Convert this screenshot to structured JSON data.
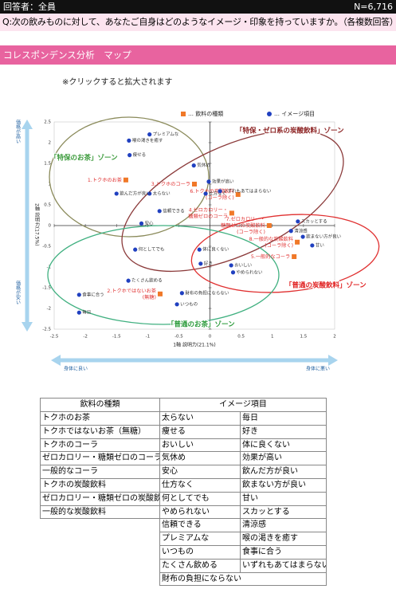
{
  "header": {
    "respondent": "回答者：全員",
    "n": "N=6,716",
    "question": "Q:次の飲みものに対して、あなたご自身はどのようなイメージ・印象を持っていますか。（各複数回答）"
  },
  "section": {
    "title": "コレスポンデンス分析　マップ",
    "note": "※クリックすると拡大されます"
  },
  "chart_data": {
    "type": "scatter",
    "xlabel": "1軸 説明力(21.1%)",
    "ylabel": "2軸 説明力(17.5%)",
    "xlim": [
      -2.5,
      2
    ],
    "ylim": [
      -2.5,
      2.5
    ],
    "xticks": [
      -2.5,
      -2,
      -1.5,
      -1,
      -0.5,
      0,
      0.5,
      1,
      1.5,
      2
    ],
    "yticks": [
      -2.5,
      -2,
      -1.5,
      -1,
      -0.5,
      0,
      0.5,
      1,
      1.5,
      2,
      2.5
    ],
    "grid": false,
    "legend": "top",
    "series": [
      {
        "name": "… 飲料の種類",
        "color": "#f07828",
        "marker": "square",
        "label_color": "#e03030",
        "x": [
          -1.35,
          -0.8,
          -0.25,
          0.35,
          1.35,
          0.45,
          0.95,
          1.4
        ],
        "values": [
          1.1,
          -1.65,
          1.0,
          0.3,
          -0.75,
          0.75,
          0.0,
          -0.4
        ],
        "labels": [
          [
            "1.トクホのお茶"
          ],
          [
            "2.トクホではないお茶",
            "(無糖)"
          ],
          [
            "3.トクホのコーラ"
          ],
          [
            "4.ゼロカロリー・",
            "糖類ゼロのコーラ"
          ],
          [
            "5.一般的なコーラ"
          ],
          [
            "6.トクホの炭酸飲料",
            "(コーラ除く)"
          ],
          [
            "7.ゼロカロリー・",
            "糖類ゼロの炭酸飲料",
            "(コーラ除く)"
          ],
          [
            "8.一般的な炭酸飲料",
            "(コーラ除く)"
          ]
        ]
      },
      {
        "name": "… イメージ項目",
        "color": "#2040c0",
        "marker": "circle",
        "label_color": "#333333",
        "x": [
          -0.97,
          -1.29,
          0.34,
          -0.26,
          -1.1,
          -0.07,
          -1.2,
          0.37,
          -0.81,
          -0.97,
          -0.53,
          -1.31,
          -0.45,
          -2.1,
          -0.15,
          -0.17,
          -0.02,
          -1.5,
          1.49,
          1.64,
          1.41,
          1.3,
          -1.3,
          -2.1,
          0.16
        ],
        "values": [
          0.77,
          1.7,
          -0.96,
          1.45,
          0.05,
          0.77,
          -0.58,
          -1.13,
          0.35,
          2.2,
          -1.9,
          -1.33,
          -1.63,
          -2.1,
          -0.92,
          -0.58,
          1.06,
          0.77,
          -0.27,
          -0.48,
          0.1,
          -0.13,
          2.05,
          -1.67,
          0.83
        ],
        "labels": [
          "太らない",
          "痩せる",
          "おいしい",
          "気休め",
          "安心",
          "仕方なく",
          "何としてでも",
          "やめられない",
          "信頼できる",
          "プレミアムな",
          "いつもの",
          "たくさん飲める",
          "財布の負担にならない",
          "毎日",
          "好き",
          "体に良くない",
          "効果が高い",
          "飲んだ方が良い",
          "飲まない方が良い",
          "甘い",
          "スカッとする",
          "清涼感",
          "喉の渇きを癒す",
          "食事に合う",
          "いずれもあてはまらない"
        ]
      }
    ],
    "zones": [
      {
        "text": "「特保のお茶」ゾーン",
        "color": "#3a9a3a",
        "line_color": "#8a8a5a"
      },
      {
        "text": "「特保・ゼロ系の炭酸飲料」ゾーン",
        "color": "#8b2020",
        "line_color": "#8b3a3a"
      },
      {
        "text": "「普通の炭酸飲料」ゾーン",
        "color": "#e02020",
        "line_color": "#e03030"
      },
      {
        "text": "「普通のお茶」ゾーン",
        "color": "#2a9a3a",
        "line_color": "#40b080"
      }
    ],
    "axis_notes": {
      "top": "価格が高い",
      "bottom": "価格が安い",
      "left": "身体に良い",
      "right": "身体に悪い"
    }
  },
  "table": {
    "drink_header": "飲料の種類",
    "drink_rows": [
      "トクホのお茶",
      "トクホではないお茶（無糖）",
      "トクホのコーラ",
      "ゼロカロリー・糖類ゼロのコーラ",
      "一般的なコーラ",
      "トクホの炭酸飲料",
      "ゼロカロリー・糖類ゼロの炭酸飲料",
      "一般的な炭酸飲料"
    ],
    "image_header": "イメージ項目",
    "image_rows": [
      [
        "太らない",
        "毎日"
      ],
      [
        "痩せる",
        "好き"
      ],
      [
        "おいしい",
        "体に良くない"
      ],
      [
        "気休め",
        "効果が高い"
      ],
      [
        "安心",
        "飲んだ方が良い"
      ],
      [
        "仕方なく",
        "飲まない方が良い"
      ],
      [
        "何としてでも",
        "甘い"
      ],
      [
        "やめられない",
        "スカッとする"
      ],
      [
        "信頼できる",
        "清涼感"
      ],
      [
        "プレミアムな",
        "喉の渇きを癒す"
      ],
      [
        "いつもの",
        "食事に合う"
      ],
      [
        "たくさん飲める",
        "いずれもあてはまらない"
      ],
      [
        "財布の負担にならない"
      ]
    ]
  }
}
